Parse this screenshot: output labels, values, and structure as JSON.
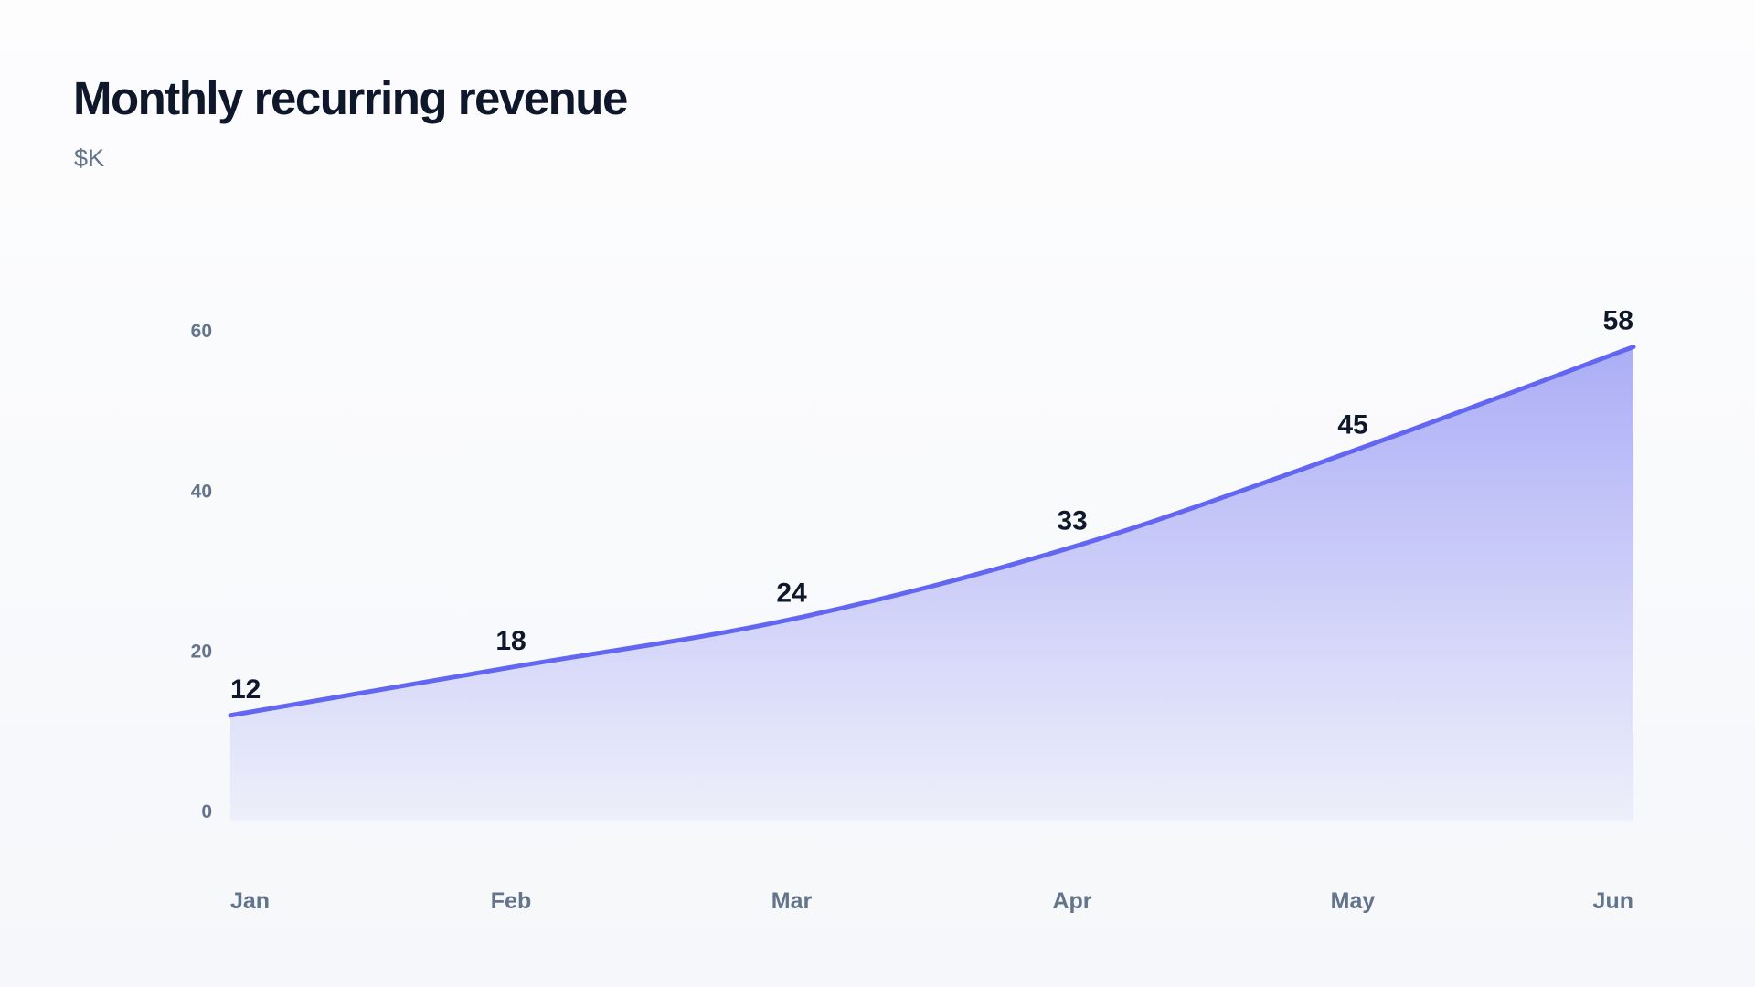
{
  "title": "Monthly recurring revenue",
  "subtitle": "$K",
  "colors": {
    "line": "#6366f1",
    "text": "#0f172a",
    "muted": "#64748b"
  },
  "chart_data": {
    "type": "area",
    "title": "Monthly recurring revenue",
    "subtitle": "$K",
    "categories": [
      "Jan",
      "Feb",
      "Mar",
      "Apr",
      "May",
      "Jun"
    ],
    "series": [
      {
        "values": [
          12,
          18,
          24,
          33,
          45,
          58
        ]
      }
    ],
    "data_labels": [
      "12",
      "18",
      "24",
      "33",
      "45",
      "58"
    ],
    "y_ticks": [
      0,
      20,
      40,
      60
    ],
    "ylim": [
      0,
      60
    ],
    "grid": false,
    "legend": "none",
    "curve": "smooth"
  }
}
